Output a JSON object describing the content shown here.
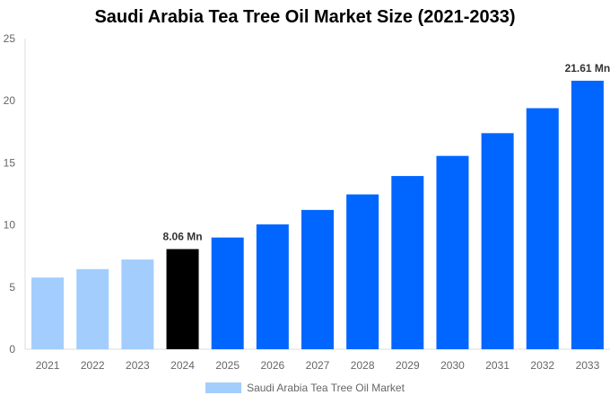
{
  "chart_data": {
    "type": "bar",
    "title": "Saudi Arabia Tea Tree Oil Market Size (2021-2033)",
    "categories": [
      "2021",
      "2022",
      "2023",
      "2024",
      "2025",
      "2026",
      "2027",
      "2028",
      "2029",
      "2030",
      "2031",
      "2032",
      "2033"
    ],
    "series": [
      {
        "name": "Saudi Arabia Tea Tree Oil Market",
        "values": [
          5.77,
          6.45,
          7.22,
          8.06,
          8.99,
          10.05,
          11.21,
          12.46,
          13.94,
          15.56,
          17.39,
          19.4,
          21.61
        ]
      }
    ],
    "data_labels": {
      "3": "8.06 Mn",
      "12": "21.61 Mn"
    },
    "ylim": [
      0,
      25
    ],
    "yticks": [
      0,
      5,
      10,
      15,
      20,
      25
    ],
    "grid": false,
    "legend_position": "bottom",
    "colors": {
      "historical": "#a3cdfd",
      "base_year": "#000000",
      "forecast": "#0066ff"
    },
    "color_by_index": [
      "historical",
      "historical",
      "historical",
      "base_year",
      "forecast",
      "forecast",
      "forecast",
      "forecast",
      "forecast",
      "forecast",
      "forecast",
      "forecast",
      "forecast"
    ]
  }
}
